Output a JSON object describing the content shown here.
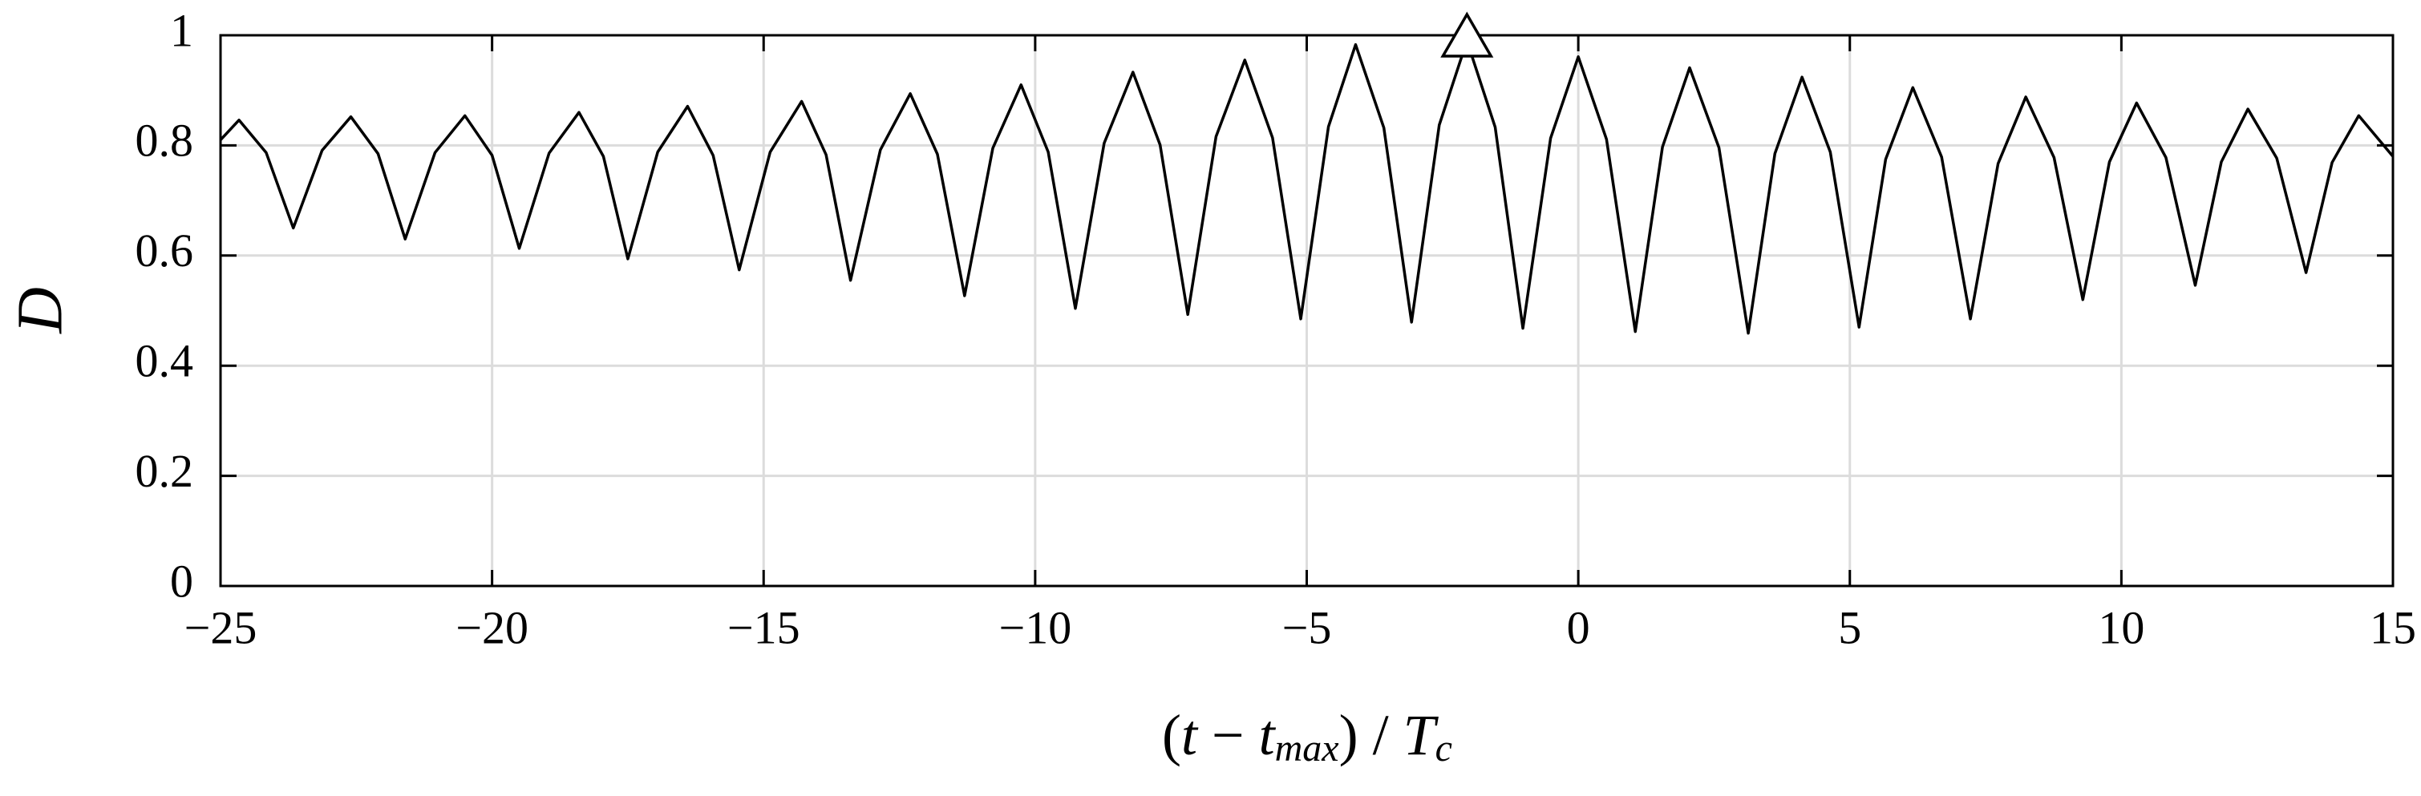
{
  "chart_data": {
    "type": "line",
    "xlabel": [
      "(",
      "t",
      " − ",
      "t",
      "max",
      ")",
      " / ",
      "T",
      "c"
    ],
    "ylabel": "D",
    "x": [
      -25,
      -24.66,
      -24.16,
      -23.66,
      -23.13,
      -22.6,
      -22.1,
      -21.6,
      -21.05,
      -20.5,
      -20.0,
      -19.5,
      -18.95,
      -18.4,
      -17.95,
      -17.5,
      -16.95,
      -16.4,
      -15.93,
      -15.45,
      -14.88,
      -14.3,
      -13.85,
      -13.4,
      -12.85,
      -12.3,
      -11.8,
      -11.3,
      -10.78,
      -10.26,
      -9.76,
      -9.26,
      -8.73,
      -8.2,
      -7.7,
      -7.19,
      -6.67,
      -6.14,
      -5.63,
      -5.11,
      -4.6,
      -4.1,
      -3.58,
      -3.07,
      -2.56,
      -2.05,
      -1.53,
      -1.02,
      -0.51,
      0,
      0.52,
      1.05,
      1.55,
      2.05,
      2.59,
      3.13,
      3.62,
      4.12,
      4.64,
      5.17,
      5.66,
      6.16,
      6.69,
      7.22,
      7.73,
      8.24,
      8.76,
      9.29,
      9.78,
      10.28,
      10.82,
      11.36,
      11.84,
      12.33,
      12.86,
      13.4,
      13.88,
      14.37,
      15
    ],
    "series": [
      {
        "color": "#000000",
        "values": [
          0.81,
          0.846,
          0.787,
          0.65,
          0.791,
          0.852,
          0.785,
          0.63,
          0.787,
          0.854,
          0.782,
          0.613,
          0.786,
          0.86,
          0.78,
          0.594,
          0.788,
          0.871,
          0.782,
          0.574,
          0.788,
          0.88,
          0.783,
          0.555,
          0.792,
          0.894,
          0.784,
          0.527,
          0.795,
          0.91,
          0.788,
          0.504,
          0.804,
          0.933,
          0.801,
          0.493,
          0.816,
          0.955,
          0.814,
          0.485,
          0.834,
          0.983,
          0.832,
          0.479,
          0.837,
          0.99,
          0.833,
          0.468,
          0.813,
          0.961,
          0.811,
          0.462,
          0.797,
          0.941,
          0.796,
          0.459,
          0.785,
          0.924,
          0.788,
          0.47,
          0.775,
          0.905,
          0.779,
          0.485,
          0.767,
          0.888,
          0.778,
          0.52,
          0.77,
          0.877,
          0.778,
          0.546,
          0.77,
          0.866,
          0.777,
          0.569,
          0.769,
          0.854,
          0.78
        ]
      }
    ],
    "marker": {
      "x": -2.05,
      "y": 1
    },
    "xlim": [
      -25,
      15
    ],
    "xticks": [
      {
        "value": -25,
        "label": "−25"
      },
      {
        "value": -20,
        "label": "−20"
      },
      {
        "value": -15,
        "label": "−15"
      },
      {
        "value": -10,
        "label": "−10"
      },
      {
        "value": -5,
        "label": "−5"
      },
      0,
      5,
      10,
      15
    ],
    "ylim": [
      0,
      1
    ],
    "yticks": [
      0,
      0.2,
      0.4,
      0.6,
      0.8,
      1
    ],
    "grid": true
  }
}
